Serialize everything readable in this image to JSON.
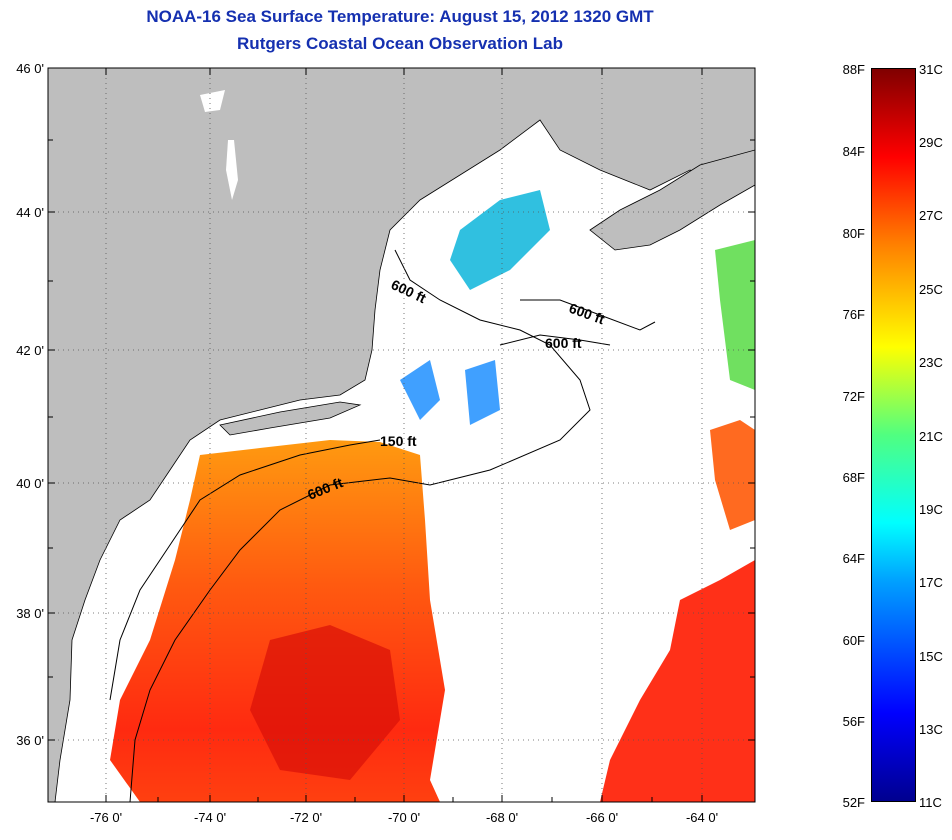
{
  "title_line1": "NOAA-16 Sea Surface Temperature:  August 15, 2012 1320 GMT",
  "title_line2": "Rutgers Coastal Ocean Observation Lab",
  "lat_labels": [
    "46 0'",
    "44 0'",
    "42 0'",
    "40 0'",
    "38 0'",
    "36 0'"
  ],
  "lon_labels": [
    "-76 0'",
    "-74 0'",
    "-72 0'",
    "-70 0'",
    "-68 0'",
    "-66 0'",
    "-64 0'"
  ],
  "isobath_labels": [
    "600 ft",
    "600 ft",
    "600 ft",
    "150 ft",
    "600 ft"
  ],
  "colorbar": {
    "fahrenheit": [
      "88F",
      "84F",
      "80F",
      "76F",
      "72F",
      "68F",
      "64F",
      "60F",
      "56F",
      "52F"
    ],
    "celsius": [
      "31C",
      "29C",
      "27C",
      "25C",
      "23C",
      "21C",
      "19C",
      "17C",
      "15C",
      "13C",
      "11C"
    ]
  },
  "colors": {
    "title": "#1530b0",
    "land": "#bebebe",
    "warm_water": "#ff4020",
    "cool_water": "#2060ff"
  }
}
